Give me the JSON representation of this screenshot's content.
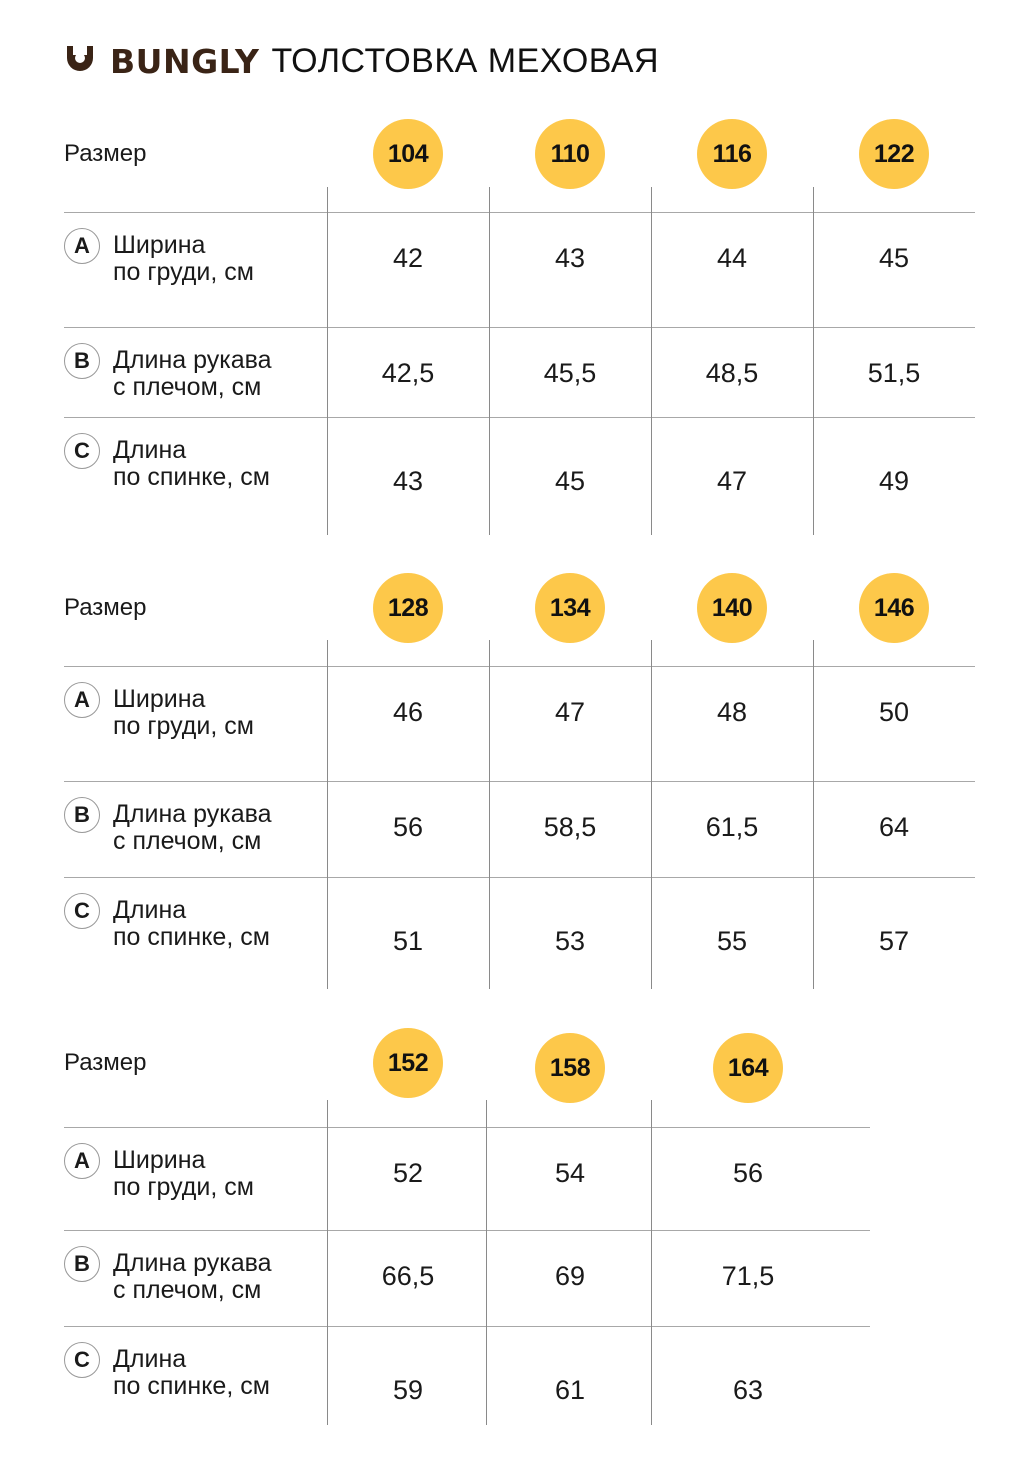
{
  "header": {
    "logo_icon": "smile-cup-icon",
    "brand": "BUNGLY",
    "product": "ТОЛСТОВКА МЕХОВАЯ"
  },
  "colors": {
    "badge": "#fdc84a",
    "brand": "#3a2416"
  },
  "size_label": "Размер",
  "rows": [
    {
      "letter": "A",
      "line1": "Ширина",
      "line2": "по груди, см"
    },
    {
      "letter": "B",
      "line1": "Длина рукава",
      "line2": "с плечом, см"
    },
    {
      "letter": "C",
      "line1": "Длина",
      "line2": "по спинке, см"
    }
  ],
  "tables": [
    {
      "sizes": [
        "104",
        "110",
        "116",
        "122"
      ],
      "values": [
        [
          "42",
          "43",
          "44",
          "45"
        ],
        [
          "42,5",
          "45,5",
          "48,5",
          "51,5"
        ],
        [
          "43",
          "45",
          "47",
          "49"
        ]
      ]
    },
    {
      "sizes": [
        "128",
        "134",
        "140",
        "146"
      ],
      "values": [
        [
          "46",
          "47",
          "48",
          "50"
        ],
        [
          "56",
          "58,5",
          "61,5",
          "64"
        ],
        [
          "51",
          "53",
          "55",
          "57"
        ]
      ]
    },
    {
      "sizes": [
        "152",
        "158",
        "164"
      ],
      "values": [
        [
          "52",
          "54",
          "56"
        ],
        [
          "66,5",
          "69",
          "71,5"
        ],
        [
          "59",
          "61",
          "63"
        ]
      ]
    }
  ]
}
